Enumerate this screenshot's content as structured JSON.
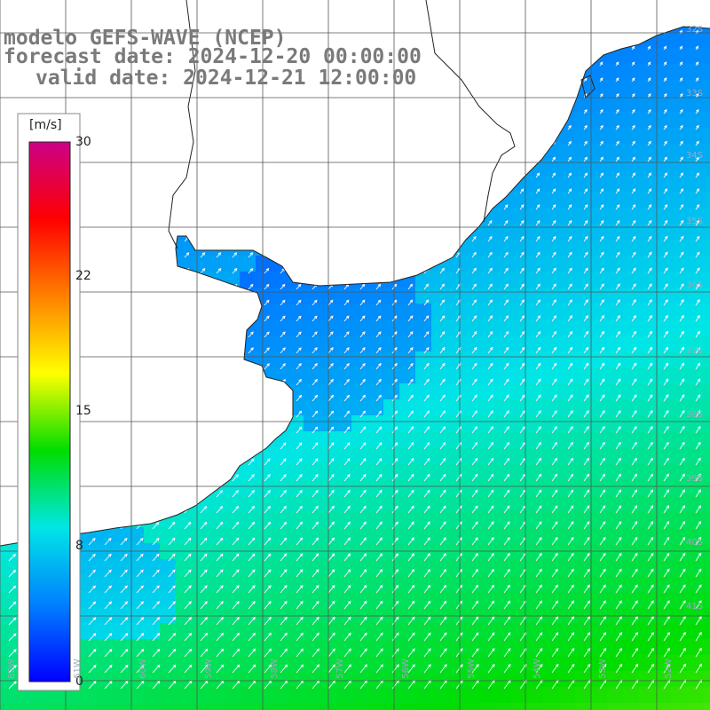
{
  "title": {
    "line1": "modelo GEFS-WAVE (NCEP)",
    "line2": "forecast date: 2024-12-20 00:00:00",
    "line3": "valid date: 2024-12-21 12:00:00"
  },
  "colorbar": {
    "units": "[m/s]",
    "ticks": [
      "30",
      "22",
      "15",
      "8",
      "0"
    ],
    "tick_values": [
      30,
      22,
      15,
      8,
      0
    ],
    "min": 0,
    "max": 30,
    "stops": [
      "#0000ff",
      "#0080ff",
      "#00e6e6",
      "#00dd00",
      "#ffff00",
      "#ff8000",
      "#ff0000",
      "#cc0088"
    ]
  },
  "map": {
    "field": "wind speed and direction",
    "lat_labels": [
      "32S",
      "33S",
      "34S",
      "35S",
      "36S",
      "37S",
      "38S",
      "39S",
      "40S",
      "41S"
    ],
    "lon_labels": [
      "62W",
      "61W",
      "60W",
      "59W",
      "58W",
      "57W",
      "56W",
      "55W",
      "54W",
      "53W",
      "52W"
    ],
    "land_color": "#ffffff",
    "grid_color": "#555555"
  }
}
